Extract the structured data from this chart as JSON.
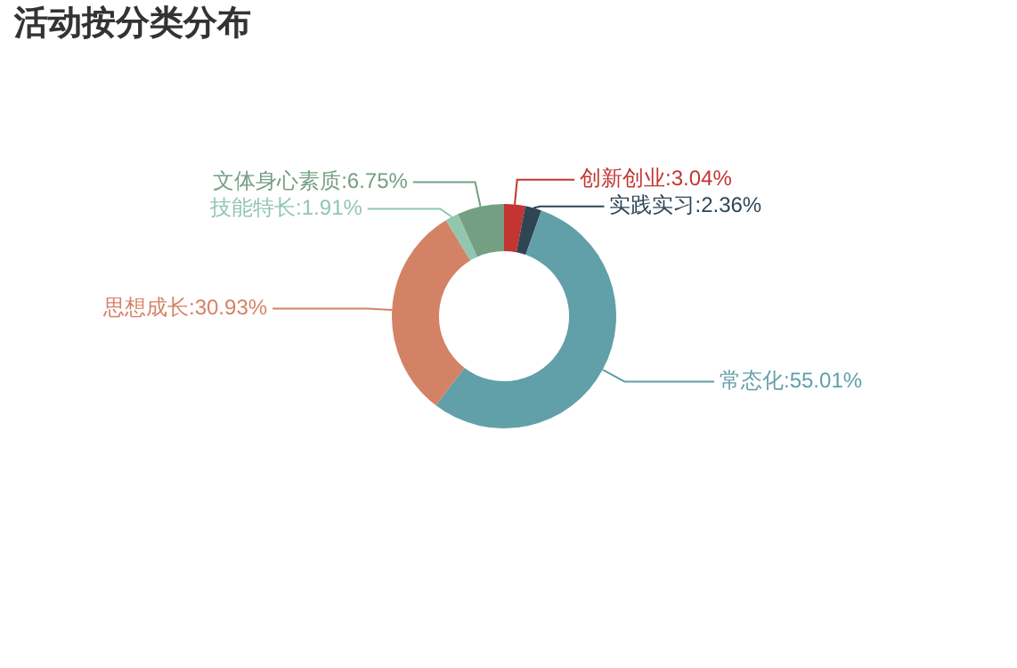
{
  "chart_data": {
    "type": "donut",
    "title": "活动按分类分布",
    "categories": [
      "创新创业",
      "实践实习",
      "常态化",
      "思想成长",
      "技能特长",
      "文体身心素质"
    ],
    "values": [
      3.04,
      2.36,
      55.01,
      30.93,
      1.91,
      6.75
    ],
    "colors": [
      "#c23531",
      "#2f4554",
      "#61a0a8",
      "#d48265",
      "#91c7ae",
      "#749f83"
    ],
    "value_labels": [
      "3.04%",
      "2.36%",
      "55.01%",
      "30.93%",
      "1.91%",
      "6.75%"
    ],
    "legend": false
  }
}
